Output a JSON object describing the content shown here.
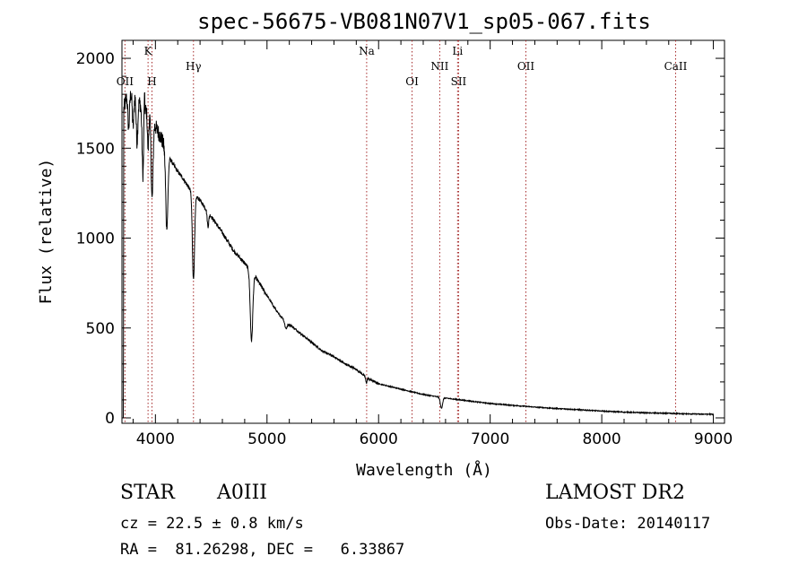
{
  "chart_data": {
    "type": "line",
    "title": "spec-56675-VB081N07V1_sp05-067.fits",
    "xlabel": "Wavelength (Å)",
    "ylabel": "Flux (relative)",
    "xlim": [
      3700,
      9100
    ],
    "ylim": [
      -30,
      2100
    ],
    "xticks": [
      4000,
      5000,
      6000,
      7000,
      8000,
      9000
    ],
    "yticks": [
      0,
      500,
      1000,
      1500,
      2000
    ],
    "grid": false,
    "line_color": "#000000",
    "marker_color": "#a52a2a",
    "lines": [
      {
        "name": "OII",
        "wavelength": 3727,
        "row": "low"
      },
      {
        "name": "K",
        "wavelength": 3934,
        "row": "high"
      },
      {
        "name": "H",
        "wavelength": 3969,
        "row": "low"
      },
      {
        "name": "Hγ",
        "wavelength": 4341,
        "row": "mid"
      },
      {
        "name": "Na",
        "wavelength": 5893,
        "row": "high"
      },
      {
        "name": "OI",
        "wavelength": 6300,
        "row": "low"
      },
      {
        "name": "NII",
        "wavelength": 6548,
        "row": "mid"
      },
      {
        "name": "Li",
        "wavelength": 6708,
        "row": "high"
      },
      {
        "name": "SII",
        "wavelength": 6717,
        "row": "low"
      },
      {
        "name": "OII",
        "wavelength": 7320,
        "row": "mid"
      },
      {
        "name": "CaII",
        "wavelength": 8662,
        "row": "mid"
      }
    ],
    "continuum": [
      [
        3710,
        1700
      ],
      [
        3740,
        1780
      ],
      [
        3800,
        1820
      ],
      [
        3850,
        1760
      ],
      [
        3900,
        1720
      ],
      [
        3950,
        1690
      ],
      [
        4000,
        1620
      ],
      [
        4050,
        1560
      ],
      [
        4100,
        1480
      ],
      [
        4150,
        1420
      ],
      [
        4200,
        1370
      ],
      [
        4250,
        1330
      ],
      [
        4300,
        1280
      ],
      [
        4400,
        1210
      ],
      [
        4500,
        1120
      ],
      [
        4600,
        1030
      ],
      [
        4700,
        930
      ],
      [
        4800,
        860
      ],
      [
        4900,
        780
      ],
      [
        5000,
        680
      ],
      [
        5100,
        580
      ],
      [
        5200,
        520
      ],
      [
        5300,
        470
      ],
      [
        5400,
        420
      ],
      [
        5500,
        370
      ],
      [
        5600,
        340
      ],
      [
        5700,
        300
      ],
      [
        5800,
        270
      ],
      [
        5900,
        220
      ],
      [
        6000,
        190
      ],
      [
        6200,
        160
      ],
      [
        6400,
        130
      ],
      [
        6600,
        110
      ],
      [
        6800,
        95
      ],
      [
        7000,
        80
      ],
      [
        7200,
        70
      ],
      [
        7400,
        60
      ],
      [
        7600,
        52
      ],
      [
        7800,
        45
      ],
      [
        8000,
        38
      ],
      [
        8200,
        32
      ],
      [
        8400,
        28
      ],
      [
        8600,
        25
      ],
      [
        8800,
        22
      ],
      [
        9000,
        20
      ]
    ],
    "absorption": [
      {
        "wavelength": 3760,
        "depth": 180,
        "width": 10
      },
      {
        "wavelength": 3800,
        "depth": 200,
        "width": 10
      },
      {
        "wavelength": 3835,
        "depth": 240,
        "width": 10
      },
      {
        "wavelength": 3889,
        "depth": 380,
        "width": 12
      },
      {
        "wavelength": 3934,
        "depth": 200,
        "width": 8
      },
      {
        "wavelength": 3970,
        "depth": 450,
        "width": 12
      },
      {
        "wavelength": 4102,
        "depth": 420,
        "width": 14
      },
      {
        "wavelength": 4341,
        "depth": 480,
        "width": 14
      },
      {
        "wavelength": 4471,
        "depth": 80,
        "width": 10
      },
      {
        "wavelength": 4861,
        "depth": 380,
        "width": 16
      },
      {
        "wavelength": 5170,
        "depth": 40,
        "width": 16
      },
      {
        "wavelength": 5890,
        "depth": 30,
        "width": 8
      },
      {
        "wavelength": 6563,
        "depth": 60,
        "width": 14
      }
    ],
    "emission": [
      {
        "wavelength": 3900,
        "height": 200,
        "width": 6
      }
    ]
  },
  "info": {
    "object_class": "STAR",
    "subclass": "A0III",
    "survey": "LAMOST DR2",
    "redshift": "cz = 22.5 ± 0.8 km/s",
    "obs_date": "Obs-Date: 20140117",
    "coords": "RA =  81.26298, DEC =   6.33867"
  }
}
